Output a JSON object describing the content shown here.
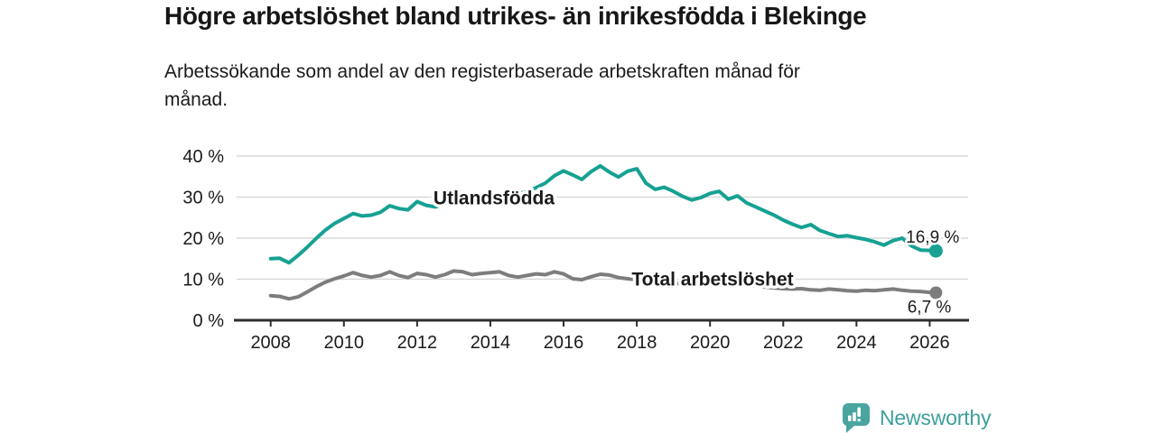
{
  "header": {
    "title": "Högre arbetslöshet bland utrikes- än inrikesfödda i Blekinge",
    "subtitle": "Arbetssökande som andel av den registerbaserade arbetskraften månad för månad."
  },
  "footer": {
    "brand": "Newsworthy",
    "logo_icon": "speech-bubble-bar-chart"
  },
  "colors": {
    "series_foreign_born": "#16a192",
    "series_total": "#7d7d7d",
    "gridline": "#d9d9d9",
    "axis": "#2e2e2e",
    "text": "#1b1b1b",
    "brand_logo": "#4aa5a1",
    "brand_text": "#3da09b",
    "background": "#ffffff"
  },
  "chart_data": {
    "type": "line",
    "title": "Högre arbetslöshet bland utrikes- än inrikesfödda i Blekinge",
    "subtitle": "Arbetssökande som andel av den registerbaserade arbetskraften månad för månad.",
    "unit": "%",
    "grid": "horizontal",
    "legend": "inline-labels",
    "xlim": [
      2007.07,
      2027.05
    ],
    "ylim": [
      0,
      40
    ],
    "xticks": [
      2008,
      2010,
      2012,
      2014,
      2016,
      2018,
      2020,
      2022,
      2024,
      2026
    ],
    "xtick_labels": [
      "2008",
      "2010",
      "2012",
      "2014",
      "2016",
      "2018",
      "2020",
      "2022",
      "2024",
      "2026"
    ],
    "yticks": [
      0,
      10,
      20,
      30,
      40
    ],
    "ytick_labels": [
      "0 %",
      "10 %",
      "20 %",
      "30 %",
      "40 %"
    ],
    "x": [
      2008.0,
      2008.25,
      2008.5,
      2008.75,
      2009.0,
      2009.25,
      2009.5,
      2009.75,
      2010.0,
      2010.25,
      2010.5,
      2010.75,
      2011.0,
      2011.25,
      2011.5,
      2011.75,
      2012.0,
      2012.25,
      2012.5,
      2012.75,
      2013.0,
      2013.25,
      2013.5,
      2013.75,
      2014.0,
      2014.25,
      2014.5,
      2014.75,
      2015.0,
      2015.25,
      2015.5,
      2015.75,
      2016.0,
      2016.25,
      2016.5,
      2016.75,
      2017.0,
      2017.25,
      2017.5,
      2017.75,
      2018.0,
      2018.25,
      2018.5,
      2018.75,
      2019.0,
      2019.25,
      2019.5,
      2019.75,
      2020.0,
      2020.25,
      2020.5,
      2020.75,
      2021.0,
      2021.25,
      2021.5,
      2021.75,
      2022.0,
      2022.25,
      2022.5,
      2022.75,
      2023.0,
      2023.25,
      2023.5,
      2023.75,
      2024.0,
      2024.25,
      2024.5,
      2024.75,
      2025.0,
      2025.25,
      2025.5,
      2025.75,
      2026.0,
      2026.17
    ],
    "series": [
      {
        "name": "Utlandsfödda",
        "end_label": "16,9 %",
        "end_value": 16.9,
        "values": [
          15.0,
          15.1,
          14.0,
          15.8,
          17.8,
          20.0,
          22.0,
          23.6,
          24.8,
          26.0,
          25.4,
          25.6,
          26.3,
          27.9,
          27.2,
          26.9,
          28.9,
          28.0,
          27.6,
          28.3,
          28.8,
          29.4,
          29.0,
          29.6,
          30.0,
          30.4,
          30.1,
          30.8,
          31.3,
          32.3,
          33.4,
          35.2,
          36.4,
          35.4,
          34.3,
          36.2,
          37.6,
          36.1,
          34.9,
          36.3,
          36.9,
          33.4,
          31.9,
          32.4,
          31.4,
          30.2,
          29.3,
          29.9,
          30.9,
          31.4,
          29.5,
          30.3,
          28.6,
          27.6,
          26.6,
          25.6,
          24.4,
          23.4,
          22.6,
          23.3,
          21.9,
          21.1,
          20.4,
          20.6,
          20.1,
          19.7,
          19.1,
          18.3,
          19.4,
          20.0,
          18.1,
          17.1,
          17.0,
          16.9
        ]
      },
      {
        "name": "Total arbetslöshet",
        "end_label": "6,7 %",
        "end_value": 6.7,
        "values": [
          6.0,
          5.8,
          5.2,
          5.7,
          6.9,
          8.2,
          9.3,
          10.1,
          10.8,
          11.6,
          10.9,
          10.5,
          10.9,
          11.8,
          10.9,
          10.4,
          11.4,
          11.1,
          10.5,
          11.1,
          12.0,
          11.8,
          11.1,
          11.4,
          11.6,
          11.8,
          10.9,
          10.5,
          10.9,
          11.3,
          11.1,
          11.8,
          11.3,
          10.1,
          9.9,
          10.6,
          11.2,
          11.0,
          10.4,
          10.1,
          9.9,
          9.6,
          9.4,
          9.2,
          9.0,
          8.9,
          8.7,
          8.8,
          9.2,
          9.6,
          9.4,
          9.1,
          8.7,
          8.4,
          8.1,
          7.9,
          7.7,
          7.6,
          7.7,
          7.4,
          7.3,
          7.6,
          7.4,
          7.2,
          7.1,
          7.3,
          7.2,
          7.4,
          7.6,
          7.3,
          7.1,
          7.0,
          6.8,
          6.7
        ]
      }
    ]
  }
}
